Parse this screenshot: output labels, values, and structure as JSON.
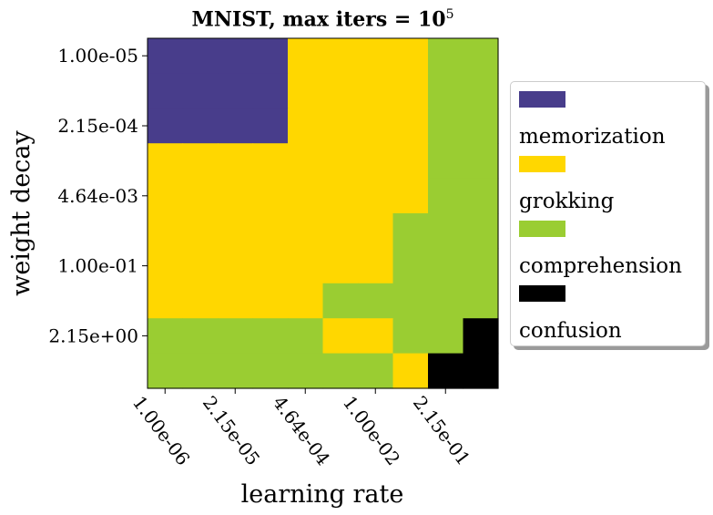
{
  "chart_data": {
    "type": "heatmap",
    "title": "MNIST, max iters = 10",
    "title_superscript": "5",
    "xlabel": "learning rate",
    "ylabel": "weight decay",
    "x_tick_labels": [
      "1.00e-06",
      "2.15e-05",
      "4.64e-04",
      "1.00e-02",
      "2.15e-01"
    ],
    "y_tick_labels": [
      "1.00e-05",
      "2.15e-04",
      "4.64e-03",
      "1.00e-01",
      "2.15e+00"
    ],
    "n_cols": 10,
    "n_rows": 10,
    "categories": [
      "memorization",
      "grokking",
      "comprehension",
      "confusion"
    ],
    "category_colors": {
      "memorization": "#483d8b",
      "grokking": "#ffd700",
      "comprehension": "#9acd32",
      "confusion": "#000000"
    },
    "grid": [
      [
        "memorization",
        "memorization",
        "memorization",
        "memorization",
        "grokking",
        "grokking",
        "grokking",
        "grokking",
        "comprehension",
        "comprehension"
      ],
      [
        "memorization",
        "memorization",
        "memorization",
        "memorization",
        "grokking",
        "grokking",
        "grokking",
        "grokking",
        "comprehension",
        "comprehension"
      ],
      [
        "memorization",
        "memorization",
        "memorization",
        "memorization",
        "grokking",
        "grokking",
        "grokking",
        "grokking",
        "comprehension",
        "comprehension"
      ],
      [
        "grokking",
        "grokking",
        "grokking",
        "grokking",
        "grokking",
        "grokking",
        "grokking",
        "grokking",
        "comprehension",
        "comprehension"
      ],
      [
        "grokking",
        "grokking",
        "grokking",
        "grokking",
        "grokking",
        "grokking",
        "grokking",
        "grokking",
        "comprehension",
        "comprehension"
      ],
      [
        "grokking",
        "grokking",
        "grokking",
        "grokking",
        "grokking",
        "grokking",
        "grokking",
        "comprehension",
        "comprehension",
        "comprehension"
      ],
      [
        "grokking",
        "grokking",
        "grokking",
        "grokking",
        "grokking",
        "grokking",
        "grokking",
        "comprehension",
        "comprehension",
        "comprehension"
      ],
      [
        "grokking",
        "grokking",
        "grokking",
        "grokking",
        "grokking",
        "comprehension",
        "comprehension",
        "comprehension",
        "comprehension",
        "comprehension"
      ],
      [
        "comprehension",
        "comprehension",
        "comprehension",
        "comprehension",
        "comprehension",
        "grokking",
        "grokking",
        "comprehension",
        "comprehension",
        "confusion"
      ],
      [
        "comprehension",
        "comprehension",
        "comprehension",
        "comprehension",
        "comprehension",
        "comprehension",
        "comprehension",
        "grokking",
        "confusion",
        "confusion"
      ]
    ],
    "legend": [
      "memorization",
      "grokking",
      "comprehension",
      "confusion"
    ],
    "legend_position": "right"
  }
}
